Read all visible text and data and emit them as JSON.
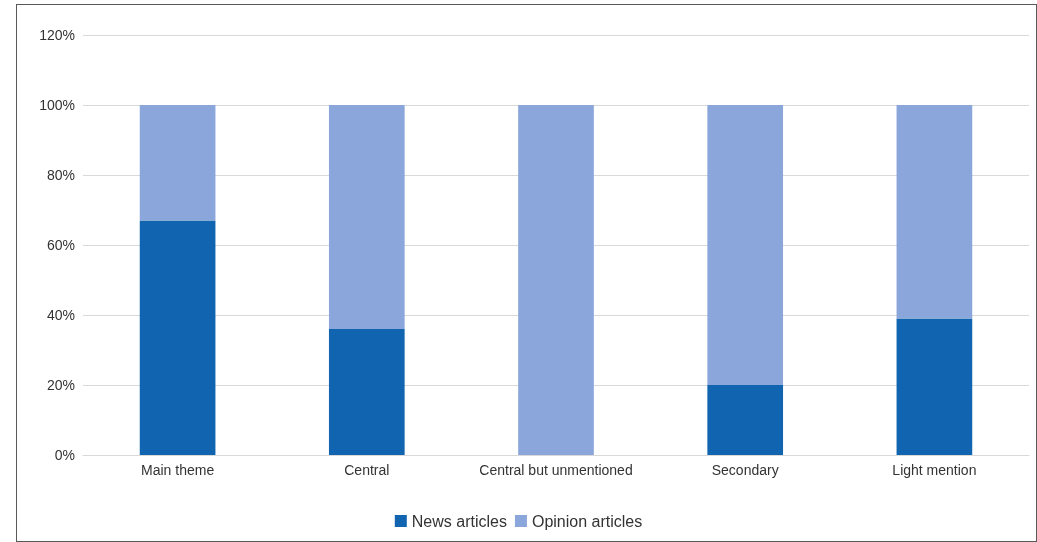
{
  "chart_data": {
    "type": "bar",
    "stacked": true,
    "categories": [
      "Main theme",
      "Central",
      "Central but unmentioned",
      "Secondary",
      "Light mention"
    ],
    "series": [
      {
        "name": "News articles",
        "color": "#1064b0",
        "values": [
          67,
          36,
          0,
          20,
          39
        ]
      },
      {
        "name": "Opinion articles",
        "color": "#8ba6da",
        "values": [
          33,
          64,
          100,
          80,
          61
        ]
      }
    ],
    "ylim": [
      0,
      120
    ],
    "yticks": [
      {
        "value": 0,
        "label": "0%"
      },
      {
        "value": 20,
        "label": "20%"
      },
      {
        "value": 40,
        "label": "40%"
      },
      {
        "value": 60,
        "label": "60%"
      },
      {
        "value": 80,
        "label": "80%"
      },
      {
        "value": 100,
        "label": "100%"
      },
      {
        "value": 120,
        "label": "120%"
      }
    ],
    "grid": "y",
    "legend": "bottom"
  }
}
